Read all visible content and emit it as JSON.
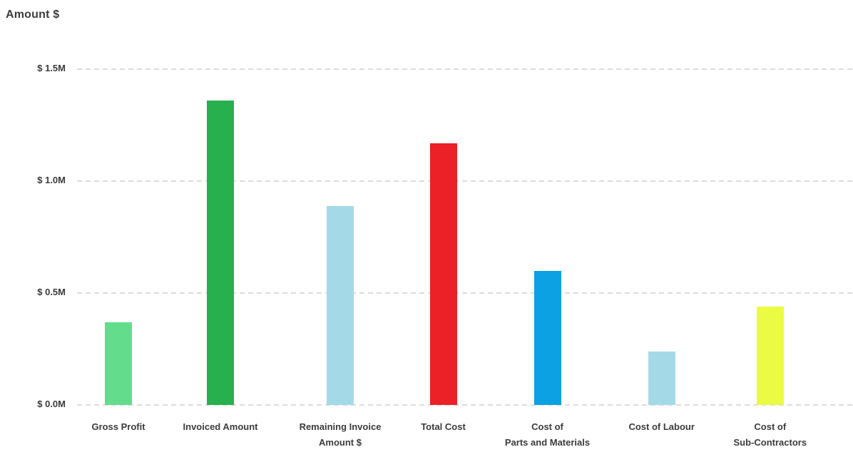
{
  "chart_data": {
    "type": "bar",
    "title": "Amount $",
    "xlabel": "",
    "ylabel": "Amount $",
    "unit": "M",
    "categories": [
      "Gross Profit",
      "Invoiced Amount",
      "Remaining Invoice Amount $",
      "Total Cost",
      "Cost of Parts and Materials",
      "Cost of Labour",
      "Cost of Sub-Contractors"
    ],
    "category_label_lines": [
      [
        "Gross Profit"
      ],
      [
        "Invoiced Amount"
      ],
      [
        "Remaining Invoice",
        "Amount $"
      ],
      [
        "Total Cost"
      ],
      [
        "Cost of",
        "Parts and Materials"
      ],
      [
        "Cost of Labour"
      ],
      [
        "Cost of",
        "Sub-Contractors"
      ]
    ],
    "values": [
      0.37,
      1.36,
      0.89,
      1.17,
      0.6,
      0.24,
      0.44
    ],
    "bar_colors": [
      "#63DD8C",
      "#28B04E",
      "#A4DAE8",
      "#EB2127",
      "#0BA1E2",
      "#A4DAE8",
      "#EBFB43"
    ],
    "y_ticks": [
      {
        "value": 1.5,
        "label": "$ 1.5M"
      },
      {
        "value": 1.0,
        "label": "$ 1.0M"
      },
      {
        "value": 0.5,
        "label": "$ 0.5M"
      },
      {
        "value": 0.0,
        "label": "$ 0.0M"
      }
    ],
    "ylim": [
      0,
      1.5
    ],
    "grid": "horizontal-dashed",
    "legend": "none",
    "text_color": "#3b3b3b",
    "gridline_color": "#dcdcdc",
    "background_color": "#ffffff"
  }
}
